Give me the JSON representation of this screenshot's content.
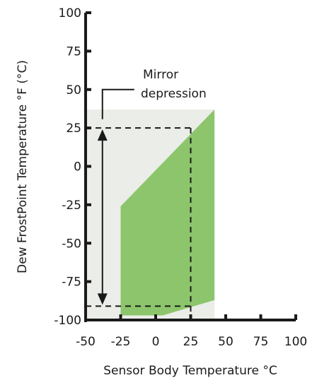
{
  "chart_data": {
    "type": "area",
    "xlabel": "Sensor Body Temperature °C",
    "ylabel": "Dew FrostPoint Temperature °F (°C)",
    "xlim": [
      -50,
      100
    ],
    "ylim": [
      -100,
      100
    ],
    "x_ticks": [
      "-50",
      "-25",
      "0",
      "25",
      "50",
      "75",
      "100"
    ],
    "y_ticks": [
      "100",
      "75",
      "50",
      "25",
      "0",
      "-25",
      "-50",
      "-75",
      "-100"
    ],
    "background_region": {
      "x": [
        -50,
        42
      ],
      "y": [
        -100,
        37
      ]
    },
    "operating_region": {
      "color": "#8cc56b",
      "polygon": [
        [
          -25,
          -26
        ],
        [
          -25,
          -97
        ],
        [
          5,
          -97
        ],
        [
          42,
          -87
        ],
        [
          42,
          37
        ]
      ]
    },
    "dashed_lines": [
      {
        "from": [
          -50,
          25
        ],
        "to": [
          25,
          25
        ]
      },
      {
        "from": [
          -50,
          -91
        ],
        "to": [
          25,
          -91
        ]
      },
      {
        "from": [
          25,
          25
        ],
        "to": [
          25,
          -100
        ]
      }
    ],
    "double_arrow": {
      "x": -38,
      "y_from": 25,
      "y_to": -91
    },
    "annotation": {
      "text_lines": [
        "Mirror",
        "depression"
      ],
      "anchor": [
        -38,
        50
      ]
    },
    "colors": {
      "background": "#ebede9",
      "region": "#8cc56b",
      "axis": "#1a1a1a"
    },
    "grid": false
  }
}
